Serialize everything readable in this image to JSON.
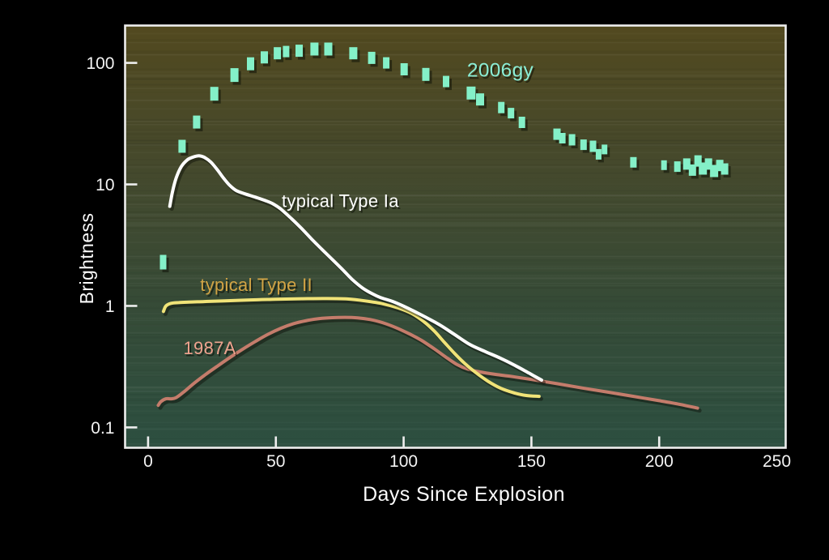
{
  "chart_data": {
    "type": "scatter",
    "title": "",
    "xlabel": "Days Since Explosion",
    "ylabel": "Brightness",
    "x_axis": {
      "lim": [
        -9,
        249.5
      ],
      "grid": false,
      "ticks": [
        {
          "value": 0,
          "label": "0"
        },
        {
          "value": 50,
          "label": "50"
        },
        {
          "value": 100,
          "label": "100"
        },
        {
          "value": 150,
          "label": "150"
        },
        {
          "value": 200,
          "label": "200"
        },
        {
          "value": 250,
          "label": "250"
        }
      ]
    },
    "y_axis": {
      "scale": "log",
      "lim": [
        0.068,
        203
      ],
      "grid": false,
      "ticks": [
        {
          "value": 100,
          "label": "100"
        },
        {
          "value": 10,
          "label": "10"
        },
        {
          "value": 1,
          "label": "1"
        },
        {
          "value": 0.1,
          "label": "0.1"
        }
      ]
    },
    "background": {
      "outside": "#000000",
      "frame": "#eeeeee",
      "gradient_top": "#52491f",
      "gradient_upper_mid": "#45492c",
      "gradient_lower_mid": "#364b37",
      "gradient_bottom": "#2c4f40"
    },
    "series": [
      {
        "name": "2006gy",
        "kind": "scatter-rect",
        "color": "#84f0c8",
        "points_format": [
          "day",
          "brightness",
          "marker_w_px",
          "marker_h_px"
        ],
        "points": [
          [
            5.9,
            2.29,
            8,
            18
          ],
          [
            13.3,
            20.6,
            9,
            16
          ],
          [
            19.0,
            32.6,
            9,
            16
          ],
          [
            25.9,
            55.7,
            10,
            17
          ],
          [
            33.8,
            79.4,
            10,
            17
          ],
          [
            40.1,
            98.3,
            9,
            16
          ],
          [
            45.5,
            111,
            9,
            15
          ],
          [
            50.6,
            120,
            9,
            15
          ],
          [
            54.0,
            124,
            8,
            14
          ],
          [
            59.1,
            126,
            9,
            15
          ],
          [
            65.1,
            130,
            10,
            16
          ],
          [
            70.5,
            130,
            10,
            16
          ],
          [
            80.3,
            120,
            10,
            15
          ],
          [
            87.5,
            110,
            9,
            15
          ],
          [
            93.2,
            100,
            8,
            14
          ],
          [
            100.2,
            88.6,
            9,
            15
          ],
          [
            108.7,
            80.4,
            9,
            16
          ],
          [
            116.6,
            70.2,
            8,
            14
          ],
          [
            126.4,
            56.5,
            11,
            16
          ],
          [
            129.9,
            50.0,
            10,
            15
          ],
          [
            138.2,
            42.9,
            8,
            14
          ],
          [
            142.0,
            38.6,
            8,
            13
          ],
          [
            146.3,
            32.4,
            8,
            14
          ],
          [
            160.0,
            25.9,
            9,
            14
          ],
          [
            162.1,
            24.0,
            8,
            13
          ],
          [
            165.9,
            23.3,
            8,
            14
          ],
          [
            170.4,
            21.2,
            8,
            13
          ],
          [
            174.1,
            20.6,
            8,
            14
          ],
          [
            176.3,
            17.7,
            7,
            13
          ],
          [
            178.6,
            19.4,
            7,
            12
          ],
          [
            189.9,
            15.2,
            8,
            13
          ],
          [
            201.9,
            14.4,
            7,
            12
          ],
          [
            207.1,
            14.0,
            8,
            13
          ],
          [
            210.8,
            14.7,
            9,
            14
          ],
          [
            213.0,
            13.1,
            9,
            14
          ],
          [
            215.2,
            15.6,
            9,
            14
          ],
          [
            217.1,
            13.5,
            10,
            15
          ],
          [
            219.3,
            14.7,
            9,
            14
          ],
          [
            221.5,
            12.9,
            10,
            15
          ],
          [
            223.7,
            14.3,
            9,
            14
          ],
          [
            225.6,
            13.4,
            9,
            14
          ]
        ]
      },
      {
        "name": "typical Type Ia",
        "kind": "line",
        "color": "#ffffff",
        "points": [
          [
            8.5,
            6.6
          ],
          [
            9.5,
            8.6
          ],
          [
            11,
            11.3
          ],
          [
            13,
            14.0
          ],
          [
            15.5,
            16.0
          ],
          [
            18,
            16.9
          ],
          [
            20,
            17.2
          ],
          [
            22,
            16.7
          ],
          [
            24.5,
            15.3
          ],
          [
            27,
            13.3
          ],
          [
            29.5,
            11.3
          ],
          [
            32,
            9.8
          ],
          [
            34.5,
            8.9
          ],
          [
            38,
            8.35
          ],
          [
            42,
            7.85
          ],
          [
            46,
            7.35
          ],
          [
            49,
            6.9
          ],
          [
            52,
            6.25
          ],
          [
            56,
            5.25
          ],
          [
            60,
            4.35
          ],
          [
            64,
            3.55
          ],
          [
            68,
            2.92
          ],
          [
            72,
            2.42
          ],
          [
            76,
            2.0
          ],
          [
            80,
            1.64
          ],
          [
            84,
            1.4
          ],
          [
            88,
            1.25
          ],
          [
            91,
            1.17
          ],
          [
            96,
            1.08
          ],
          [
            102,
            0.95
          ],
          [
            108,
            0.82
          ],
          [
            114,
            0.7
          ],
          [
            120,
            0.58
          ],
          [
            126,
            0.48
          ],
          [
            132,
            0.42
          ],
          [
            138,
            0.37
          ],
          [
            144,
            0.32
          ],
          [
            149,
            0.28
          ],
          [
            154,
            0.245
          ]
        ]
      },
      {
        "name": "typical Type II",
        "kind": "line",
        "color": "#f0e378",
        "points": [
          [
            6,
            0.9
          ],
          [
            7,
            1.0
          ],
          [
            9,
            1.05
          ],
          [
            12,
            1.065
          ],
          [
            16,
            1.075
          ],
          [
            22,
            1.085
          ],
          [
            30,
            1.1
          ],
          [
            40,
            1.12
          ],
          [
            50,
            1.135
          ],
          [
            60,
            1.145
          ],
          [
            70,
            1.15
          ],
          [
            78,
            1.14
          ],
          [
            85,
            1.1
          ],
          [
            92,
            1.04
          ],
          [
            98,
            0.96
          ],
          [
            103,
            0.87
          ],
          [
            108,
            0.74
          ],
          [
            112,
            0.62
          ],
          [
            116,
            0.5
          ],
          [
            120,
            0.405
          ],
          [
            124,
            0.335
          ],
          [
            128,
            0.285
          ],
          [
            133,
            0.24
          ],
          [
            138,
            0.21
          ],
          [
            143,
            0.193
          ],
          [
            148,
            0.183
          ],
          [
            153,
            0.18
          ]
        ]
      },
      {
        "name": "1987A",
        "kind": "line",
        "color": "#c47c6b",
        "points": [
          [
            4,
            0.152
          ],
          [
            5,
            0.163
          ],
          [
            7,
            0.172
          ],
          [
            9,
            0.172
          ],
          [
            11,
            0.176
          ],
          [
            14,
            0.196
          ],
          [
            18,
            0.231
          ],
          [
            22,
            0.268
          ],
          [
            27,
            0.318
          ],
          [
            32,
            0.376
          ],
          [
            37,
            0.44
          ],
          [
            42,
            0.51
          ],
          [
            47,
            0.585
          ],
          [
            52,
            0.655
          ],
          [
            57,
            0.715
          ],
          [
            62,
            0.757
          ],
          [
            67,
            0.787
          ],
          [
            72,
            0.8
          ],
          [
            77,
            0.805
          ],
          [
            82,
            0.798
          ],
          [
            87,
            0.772
          ],
          [
            92,
            0.725
          ],
          [
            97,
            0.662
          ],
          [
            102,
            0.592
          ],
          [
            107,
            0.52
          ],
          [
            112,
            0.443
          ],
          [
            117,
            0.373
          ],
          [
            121,
            0.328
          ],
          [
            125,
            0.302
          ],
          [
            130,
            0.286
          ],
          [
            136,
            0.273
          ],
          [
            142,
            0.263
          ],
          [
            150,
            0.248
          ],
          [
            160,
            0.229
          ],
          [
            170,
            0.211
          ],
          [
            180,
            0.195
          ],
          [
            190,
            0.18
          ],
          [
            200,
            0.166
          ],
          [
            208,
            0.155
          ],
          [
            215,
            0.144
          ]
        ]
      }
    ],
    "annotations": [
      {
        "text": "2006gy",
        "day": 124.8,
        "brightness": 85,
        "color": "#8beed6",
        "size": "lg"
      },
      {
        "text": "typical Type Ia",
        "day": 52.3,
        "brightness": 7.1,
        "color": "#ffffff",
        "size": "md"
      },
      {
        "text": "typical Type II",
        "day": 20.4,
        "brightness": 1.45,
        "color": "#d2a445",
        "size": "md"
      },
      {
        "text": "1987A",
        "day": 13.8,
        "brightness": 0.437,
        "color": "#efa38f",
        "size": "md"
      }
    ],
    "legend_position": "none"
  }
}
